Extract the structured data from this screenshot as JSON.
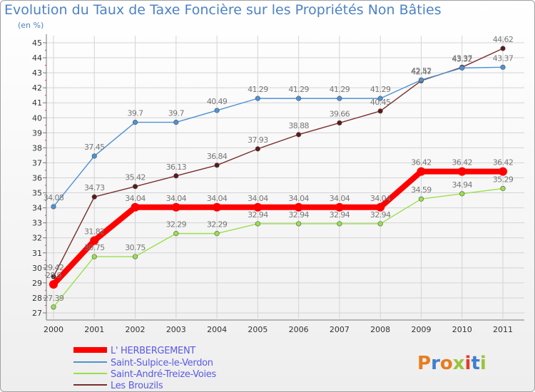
{
  "chart_data": {
    "type": "line",
    "title": "Evolution du Taux de Taxe Foncière sur les Propriétés Non Bâties",
    "subtitle": "(en %)",
    "xlabel": "",
    "ylabel": "",
    "categories": [
      "2000",
      "2001",
      "2002",
      "2003",
      "2004",
      "2005",
      "2006",
      "2007",
      "2008",
      "2009",
      "2010",
      "2011"
    ],
    "ylim": [
      27,
      45
    ],
    "yticks": [
      27,
      28,
      29,
      30,
      31,
      32,
      33,
      34,
      35,
      36,
      37,
      38,
      39,
      40,
      41,
      42,
      43,
      44,
      45
    ],
    "grid": true,
    "legend_position": "bottom-left",
    "series": [
      {
        "name": "L' HERBERGEMENT",
        "color": "#ff0000",
        "values": [
          28.9,
          31.82,
          34.04,
          34.04,
          34.04,
          34.04,
          34.04,
          34.04,
          34.04,
          36.42,
          36.42,
          36.42
        ],
        "labels": [
          "28.9",
          "31.82",
          "34.04",
          "34.04",
          "34.04",
          "34.04",
          "34.04",
          "34.04",
          "34.04",
          "36.42",
          "36.42",
          "36.42"
        ]
      },
      {
        "name": "Saint-Sulpice-le-Verdon",
        "color": "#4d92d4",
        "values": [
          34.08,
          37.45,
          39.7,
          39.7,
          40.49,
          41.29,
          41.29,
          41.29,
          41.29,
          42.52,
          43.32,
          43.37
        ],
        "labels": [
          "34.08",
          "37.45",
          "39.7",
          "39.7",
          "40.49",
          "41.29",
          "41.29",
          "41.29",
          "41.29",
          "42.52",
          "43.32",
          "43.37"
        ]
      },
      {
        "name": "Saint-André-Treize-Voies",
        "color": "#99e04a",
        "values": [
          27.39,
          30.75,
          30.75,
          32.29,
          32.29,
          32.94,
          32.94,
          32.94,
          32.94,
          34.59,
          34.94,
          35.29
        ],
        "labels": [
          "27.39",
          "30.75",
          "30.75",
          "32.29",
          "32.29",
          "32.94",
          "32.94",
          "32.94",
          "32.94",
          "34.59",
          "34.94",
          "35.29"
        ]
      },
      {
        "name": "Les Brouzils",
        "color": "#7a2e2e",
        "values": [
          29.42,
          34.73,
          35.42,
          36.13,
          36.84,
          37.93,
          38.88,
          39.66,
          40.45,
          42.47,
          43.37,
          44.62
        ],
        "labels": [
          "29.42",
          "34.73",
          "35.42",
          "36.13",
          "36.84",
          "37.93",
          "38.88",
          "39.66",
          "40.45",
          "42.47",
          "43.37",
          "44.62"
        ]
      }
    ]
  },
  "legend_colors": {
    "L' HERBERGEMENT": "#ff0000",
    "Saint-Sulpice-le-Verdon": "#4d92d4",
    "Saint-André-Treize-Voies": "#99e04a",
    "Les Brouzils": "#7a2e2e"
  },
  "logo": {
    "text": "Proxiti",
    "colors": [
      "#e87d1e",
      "#3f7fcf",
      "#9ac43c",
      "#e33b2b"
    ]
  }
}
